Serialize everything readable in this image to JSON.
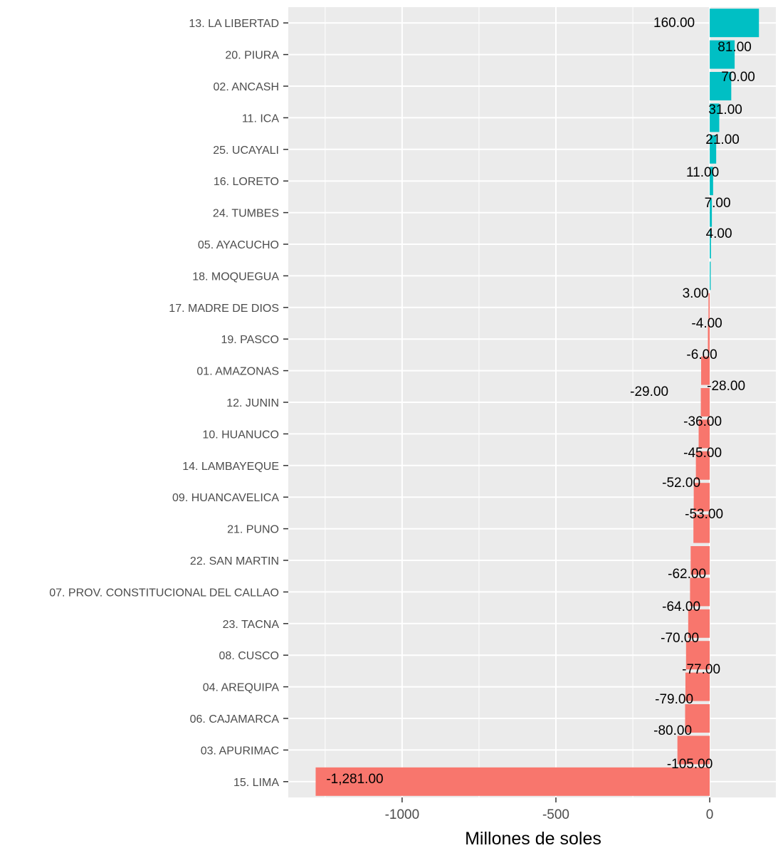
{
  "chart_data": {
    "type": "bar",
    "orientation": "horizontal",
    "categories": [
      "13. LA LIBERTAD",
      "20. PIURA",
      "02. ANCASH",
      "11. ICA",
      "25. UCAYALI",
      "16. LORETO",
      "24. TUMBES",
      "05. AYACUCHO",
      "18. MOQUEGUA",
      "17. MADRE DE DIOS",
      "19. PASCO",
      "01. AMAZONAS",
      "12. JUNIN",
      "10. HUANUCO",
      "14. LAMBAYEQUE",
      "09. HUANCAVELICA",
      "21. PUNO",
      "22. SAN MARTIN",
      "07. PROV. CONSTITUCIONAL DEL CALLAO",
      "23. TACNA",
      "08. CUSCO",
      "04. AREQUIPA",
      "06. CAJAMARCA",
      "03. APURIMAC",
      "15. LIMA"
    ],
    "values": [
      160,
      81,
      70,
      31,
      21,
      11,
      7,
      4,
      3,
      -4,
      -6,
      -28,
      -29,
      -36,
      -45,
      -52,
      -53,
      -62,
      -64,
      -70,
      -77,
      -79,
      -80,
      -105,
      -1281
    ],
    "value_labels": [
      "160.00",
      "81.00",
      "70.00",
      "31.00",
      "21.00",
      "11.00",
      "7.00",
      "4.00",
      "3.00",
      "-4.00",
      "-6.00",
      "-28.00",
      "-29.00",
      "-36.00",
      "-45.00",
      "-52.00",
      "-53.00",
      "-62.00",
      "-64.00",
      "-70.00",
      "-77.00",
      "-79.00",
      "-80.00",
      "-105.00",
      "-1,281.00"
    ],
    "xlabel": "Millones de soles",
    "ylabel": "",
    "xlim": [
      -1370,
      215
    ],
    "xticks": [
      -1000,
      -500,
      0
    ],
    "xtick_labels": [
      "-1000",
      "-500",
      "0"
    ],
    "grid": true,
    "legend": "none",
    "colors": {
      "positive": "#00bfc4",
      "negative": "#f8766d",
      "panel_background": "#ebebeb",
      "gridline": "#ffffff"
    }
  }
}
